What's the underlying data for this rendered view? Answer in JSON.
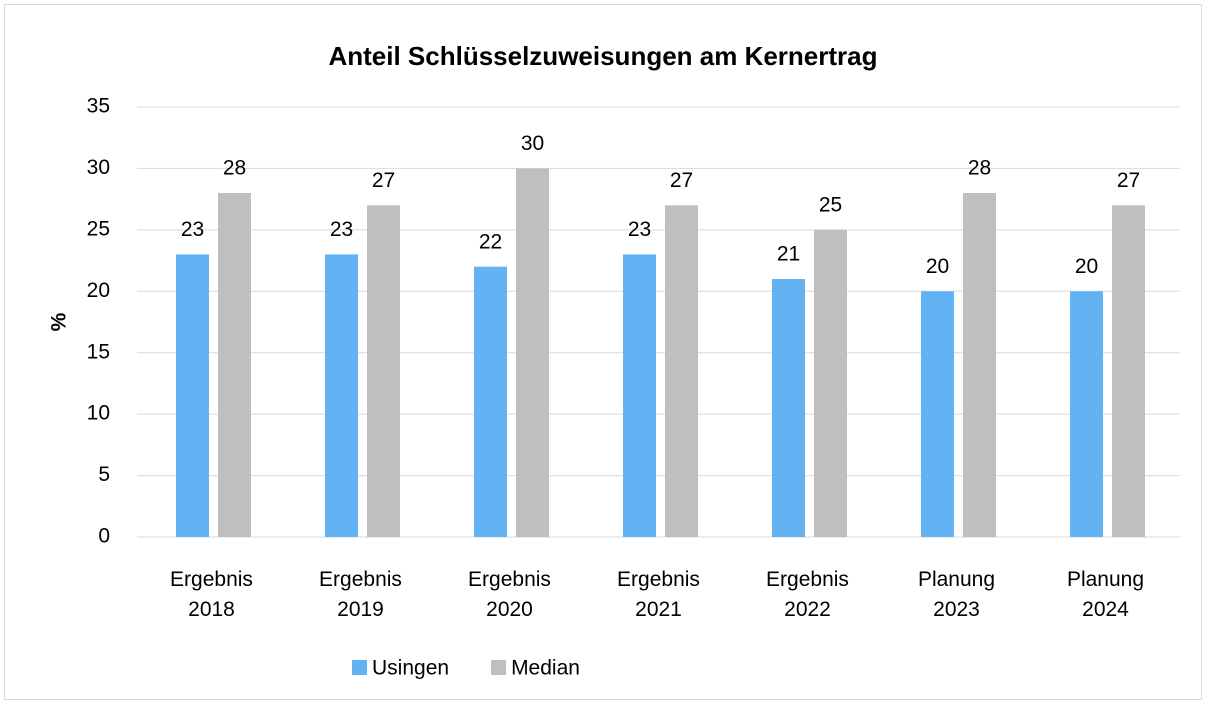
{
  "chart_data": {
    "type": "bar",
    "title": "Anteil Schlüsselzuweisungen am Kernertrag",
    "y_label": "%",
    "categories": [
      "Ergebnis 2018",
      "Ergebnis 2019",
      "Ergebnis 2020",
      "Ergebnis 2021",
      "Ergebnis 2022",
      "Planung 2023",
      "Planung 2024"
    ],
    "series": [
      {
        "name": "Usingen",
        "color": "#63b3f4",
        "values": [
          23,
          23,
          22,
          23,
          21,
          20,
          20
        ]
      },
      {
        "name": "Median",
        "color": "#bfbfbf",
        "values": [
          28,
          27,
          30,
          27,
          25,
          28,
          27
        ]
      }
    ],
    "ylim": [
      0,
      35
    ],
    "yticks": [
      0,
      5,
      10,
      15,
      20,
      25,
      30,
      35
    ],
    "grid": true,
    "legend": "bottom"
  }
}
